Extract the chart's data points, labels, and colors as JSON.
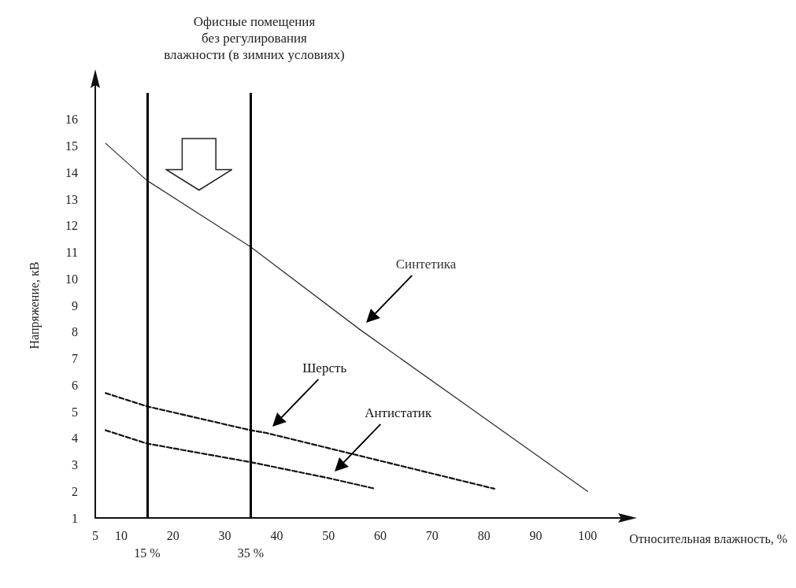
{
  "chart_data": {
    "type": "line",
    "title": "Офисные помещения\nбез регулирования\nвлажности (в зимних условиях)",
    "xlabel": "Относительная влажность, %",
    "ylabel": "Напряжение, кВ",
    "xlim": [
      5,
      105
    ],
    "xticks": [
      5,
      10,
      20,
      30,
      40,
      50,
      60,
      70,
      80,
      90,
      100
    ],
    "ylim": [
      1,
      17
    ],
    "yticks": [
      1,
      2,
      3,
      4,
      5,
      6,
      7,
      8,
      9,
      10,
      11,
      12,
      13,
      14,
      15,
      16
    ],
    "grid": false,
    "marker": "none",
    "series": [
      {
        "name": "Синтетика",
        "x": [
          7,
          15,
          35,
          56,
          100
        ],
        "values": [
          15.1,
          13.7,
          11.2,
          8.1,
          2.0
        ],
        "color": "#333333",
        "line_style": "solid"
      },
      {
        "name": "Шерсть",
        "x": [
          7,
          15,
          35,
          38,
          82
        ],
        "values": [
          5.7,
          5.2,
          4.3,
          4.2,
          2.1
        ],
        "color": "#111111",
        "line_style": "dashed"
      },
      {
        "name": "Антистатик",
        "x": [
          7,
          15,
          35,
          50,
          59
        ],
        "values": [
          4.3,
          3.8,
          3.1,
          2.5,
          2.1
        ],
        "color": "#111111",
        "line_style": "dashed"
      }
    ],
    "ref_lines": [
      {
        "axis": "x",
        "value": 15,
        "label": "15 %",
        "color": "#000000"
      },
      {
        "axis": "x",
        "value": 35,
        "label": "35 %",
        "color": "#000000"
      }
    ]
  }
}
